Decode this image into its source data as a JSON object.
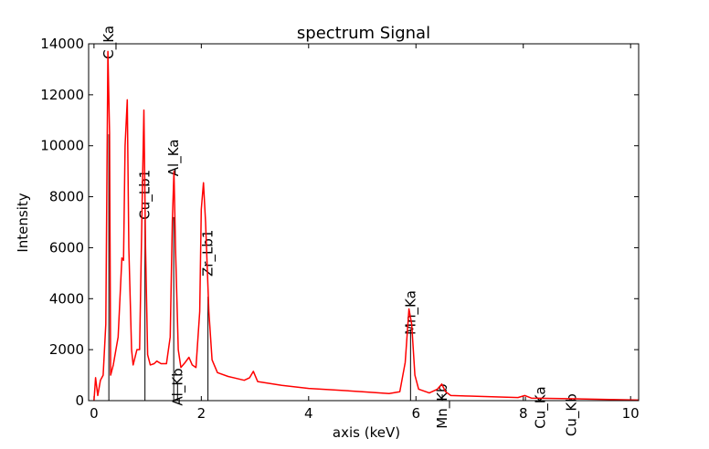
{
  "chart_data": {
    "type": "line",
    "title": "spectrum Signal",
    "xlabel": "axis (keV)",
    "ylabel": "Intensity",
    "xlim": [
      -0.1,
      10.15
    ],
    "ylim": [
      0,
      14000
    ],
    "xticks": [
      0,
      2,
      4,
      6,
      8,
      10
    ],
    "yticks": [
      0,
      2000,
      4000,
      6000,
      8000,
      10000,
      12000,
      14000
    ],
    "grid": false,
    "series": [
      {
        "name": "spectrum",
        "color": "#ff0000",
        "points": [
          [
            0,
            0
          ],
          [
            0.03,
            900
          ],
          [
            0.07,
            200
          ],
          [
            0.12,
            800
          ],
          [
            0.17,
            1000
          ],
          [
            0.22,
            3000
          ],
          [
            0.26,
            13700
          ],
          [
            0.29,
            10500
          ],
          [
            0.31,
            1000
          ],
          [
            0.36,
            1400
          ],
          [
            0.45,
            2500
          ],
          [
            0.52,
            5600
          ],
          [
            0.55,
            5500
          ],
          [
            0.58,
            10000
          ],
          [
            0.62,
            11800
          ],
          [
            0.65,
            6000
          ],
          [
            0.7,
            2000
          ],
          [
            0.73,
            1400
          ],
          [
            0.8,
            2000
          ],
          [
            0.85,
            2000
          ],
          [
            0.9,
            8000
          ],
          [
            0.93,
            11400
          ],
          [
            0.96,
            6000
          ],
          [
            1.0,
            1800
          ],
          [
            1.05,
            1400
          ],
          [
            1.12,
            1450
          ],
          [
            1.17,
            1550
          ],
          [
            1.25,
            1450
          ],
          [
            1.35,
            1450
          ],
          [
            1.42,
            2500
          ],
          [
            1.46,
            7000
          ],
          [
            1.49,
            9000
          ],
          [
            1.52,
            6000
          ],
          [
            1.57,
            2000
          ],
          [
            1.62,
            1300
          ],
          [
            1.7,
            1500
          ],
          [
            1.77,
            1700
          ],
          [
            1.83,
            1400
          ],
          [
            1.9,
            1300
          ],
          [
            1.97,
            3500
          ],
          [
            2.0,
            7500
          ],
          [
            2.04,
            8550
          ],
          [
            2.08,
            7000
          ],
          [
            2.14,
            3500
          ],
          [
            2.2,
            1600
          ],
          [
            2.3,
            1100
          ],
          [
            2.5,
            950
          ],
          [
            2.8,
            800
          ],
          [
            2.9,
            900
          ],
          [
            2.97,
            1150
          ],
          [
            3.05,
            750
          ],
          [
            3.5,
            600
          ],
          [
            4.0,
            480
          ],
          [
            5.0,
            350
          ],
          [
            5.5,
            280
          ],
          [
            5.7,
            350
          ],
          [
            5.8,
            1500
          ],
          [
            5.87,
            3600
          ],
          [
            5.92,
            3000
          ],
          [
            5.98,
            1000
          ],
          [
            6.05,
            450
          ],
          [
            6.25,
            300
          ],
          [
            6.4,
            450
          ],
          [
            6.48,
            650
          ],
          [
            6.55,
            350
          ],
          [
            6.65,
            200
          ],
          [
            7.0,
            180
          ],
          [
            7.9,
            120
          ],
          [
            8.03,
            200
          ],
          [
            8.15,
            100
          ],
          [
            9.0,
            70
          ],
          [
            10.15,
            20
          ]
        ]
      }
    ],
    "markers": [
      {
        "label": "C_Ka",
        "energy": 0.277,
        "line_top": 10450,
        "label_y": 13400
      },
      {
        "label": "Cu_Lb1",
        "energy": 0.95,
        "line_top": 7100,
        "label_y": 7100
      },
      {
        "label": "Al_Ka",
        "energy": 1.486,
        "line_top": 7200,
        "label_y": 8800
      },
      {
        "label": "Al_Kb",
        "energy": 1.557,
        "line_top": 680,
        "label_y": -200
      },
      {
        "label": "Zr_Lb1",
        "energy": 2.124,
        "line_top": 4080,
        "label_y": 4870
      },
      {
        "label": "Mn_Ka",
        "energy": 5.899,
        "line_top": 2800,
        "label_y": 2580
      },
      {
        "label": "Mn_Kb",
        "energy": 6.49,
        "line_top": 250,
        "label_y": -1100
      },
      {
        "label": "Cu_Ka",
        "energy": 8.04,
        "line_top": 150,
        "label_y": -1100
      },
      {
        "label": "Cu_Kb",
        "energy": 8.9,
        "line_top": 80,
        "label_y": -1400
      }
    ]
  }
}
